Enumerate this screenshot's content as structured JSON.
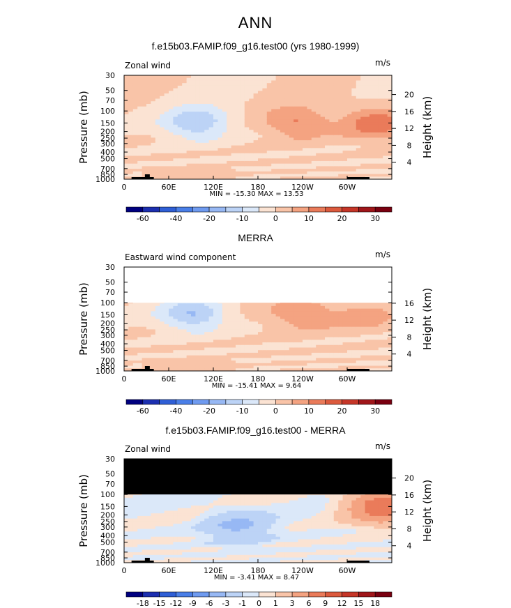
{
  "page_title": "ANN",
  "chart_data": [
    {
      "type": "heatmap",
      "title": "f.e15b03.FAMIP.f09_g16.test00 (yrs 1980-1999)",
      "left_label": "Zonal wind",
      "units": "m/s",
      "ylabel": "Pressure (mb)",
      "y2label": "Height (km)",
      "x_ticks": [
        "0",
        "60E",
        "120E",
        "180",
        "120W",
        "60W"
      ],
      "x_values": [
        0,
        60,
        120,
        180,
        240,
        300
      ],
      "xlim": [
        0,
        360
      ],
      "y_ticks": [
        "30",
        "50",
        "70",
        "100",
        "150",
        "200",
        "250",
        "300",
        "400",
        "500",
        "700",
        "850",
        "1000"
      ],
      "y_values": [
        30,
        50,
        70,
        100,
        150,
        200,
        250,
        300,
        400,
        500,
        700,
        850,
        1000
      ],
      "ylim": [
        1000,
        30
      ],
      "y_scale": "log",
      "height_ticks": [
        "4",
        "8",
        "12",
        "16",
        "20"
      ],
      "height_values": [
        4,
        8,
        12,
        16,
        20
      ],
      "stats": "MIN = -15.30   MAX =  13.53",
      "min": -15.3,
      "max": 13.53,
      "colorbar_labels": [
        "-60",
        "-40",
        "-20",
        "-10",
        "0",
        "10",
        "20",
        "30"
      ],
      "colorbar_levels": [
        -70,
        -60,
        -50,
        -40,
        -30,
        -20,
        -15,
        -10,
        -5,
        0,
        5,
        10,
        15,
        20,
        25,
        30
      ],
      "missing_above_mb": null,
      "features": [
        {
          "kind": "negative",
          "lon": 95,
          "p": 150,
          "value": -15.3
        },
        {
          "kind": "positive",
          "lon": 230,
          "p": 150,
          "value": 11
        },
        {
          "kind": "positive",
          "lon": 335,
          "p": 150,
          "value": 13.53
        }
      ]
    },
    {
      "type": "heatmap",
      "title": "MERRA",
      "left_label": "Eastward wind component",
      "units": "m/s",
      "ylabel": "Pressure (mb)",
      "y2label": "Height (km)",
      "x_ticks": [
        "0",
        "60E",
        "120E",
        "180",
        "120W",
        "60W"
      ],
      "x_values": [
        0,
        60,
        120,
        180,
        240,
        300
      ],
      "xlim": [
        0,
        360
      ],
      "y_ticks": [
        "30",
        "50",
        "70",
        "100",
        "150",
        "200",
        "250",
        "300",
        "400",
        "500",
        "700",
        "850",
        "1000"
      ],
      "y_values": [
        30,
        50,
        70,
        100,
        150,
        200,
        250,
        300,
        400,
        500,
        700,
        850,
        1000
      ],
      "ylim": [
        1000,
        30
      ],
      "y_scale": "log",
      "height_ticks": [
        "4",
        "8",
        "12",
        "16"
      ],
      "height_values": [
        4,
        8,
        12,
        16
      ],
      "stats": "MIN = -15.41   MAX =   9.64",
      "min": -15.41,
      "max": 9.64,
      "colorbar_labels": [
        "-60",
        "-40",
        "-20",
        "-10",
        "0",
        "10",
        "20",
        "30"
      ],
      "colorbar_levels": [
        -70,
        -60,
        -50,
        -40,
        -30,
        -20,
        -15,
        -10,
        -5,
        0,
        5,
        10,
        15,
        20,
        25,
        30
      ],
      "missing_above_mb": 100,
      "missing_color": "white",
      "features": [
        {
          "kind": "negative",
          "lon": 90,
          "p": 150,
          "value": -15.41
        },
        {
          "kind": "positive",
          "lon": 235,
          "p": 150,
          "value": 9.64
        },
        {
          "kind": "positive",
          "lon": 320,
          "p": 150,
          "value": 7
        }
      ]
    },
    {
      "type": "heatmap",
      "title": "f.e15b03.FAMIP.f09_g16.test00 - MERRA",
      "left_label": "Zonal wind",
      "units": "m/s",
      "ylabel": "Pressure (mb)",
      "y2label": "Height (km)",
      "x_ticks": [
        "0",
        "60E",
        "120E",
        "180",
        "120W",
        "60W"
      ],
      "x_values": [
        0,
        60,
        120,
        180,
        240,
        300
      ],
      "xlim": [
        0,
        360
      ],
      "y_ticks": [
        "30",
        "50",
        "70",
        "100",
        "150",
        "200",
        "250",
        "300",
        "400",
        "500",
        "700",
        "850",
        "1000"
      ],
      "y_values": [
        30,
        50,
        70,
        100,
        150,
        200,
        250,
        300,
        400,
        500,
        700,
        850,
        1000
      ],
      "ylim": [
        1000,
        30
      ],
      "y_scale": "log",
      "height_ticks": [
        "4",
        "8",
        "12",
        "16",
        "20"
      ],
      "height_values": [
        4,
        8,
        12,
        16,
        20
      ],
      "stats": "MIN =  -3.41   MAX =   8.47",
      "min": -3.41,
      "max": 8.47,
      "colorbar_labels": [
        "-18",
        "-15",
        "-12",
        "-9",
        "-6",
        "-3",
        "-1",
        "0",
        "1",
        "3",
        "6",
        "9",
        "12",
        "15",
        "18"
      ],
      "colorbar_levels": [
        -21,
        -18,
        -15,
        -12,
        -9,
        -6,
        -3,
        -1,
        0,
        1,
        3,
        6,
        9,
        12,
        15,
        18
      ],
      "missing_above_mb": 100,
      "missing_color": "black",
      "features": [
        {
          "kind": "positive",
          "lon": 345,
          "p": 150,
          "value": 8.47
        },
        {
          "kind": "negative",
          "lon": 150,
          "p": 300,
          "value": -3.41
        }
      ]
    }
  ],
  "colors": {
    "scale": [
      "#000080",
      "#1c2fb0",
      "#2f5fd6",
      "#4a7fe8",
      "#6f9bf0",
      "#97b8f4",
      "#bcd3f6",
      "#dbe8f9",
      "#fbe3d3",
      "#f9c4a8",
      "#f4a381",
      "#ea7b5a",
      "#dc5a3d",
      "#c63628",
      "#a0161a",
      "#7a0010"
    ]
  }
}
